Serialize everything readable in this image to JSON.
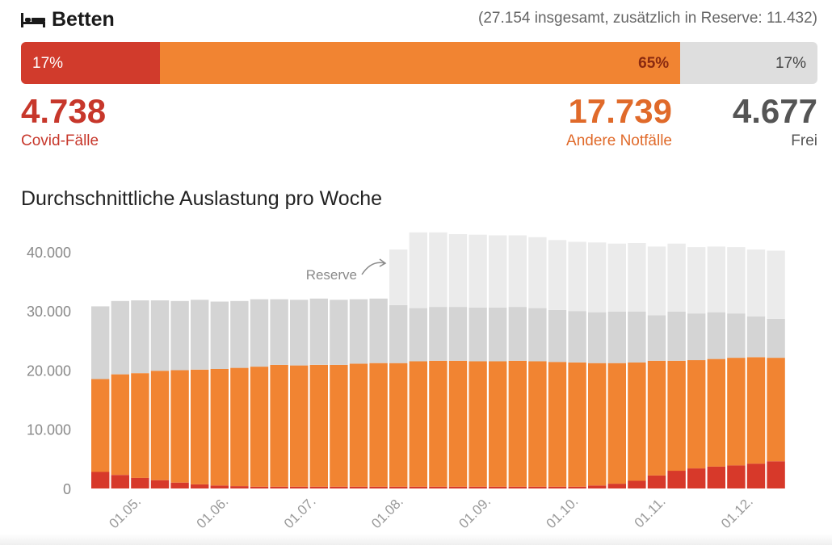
{
  "header": {
    "icon": "bed-icon",
    "title": "Betten",
    "subtitle": "(27.154 insgesamt, zusätzlich in Reserve: 11.432)"
  },
  "occupancy": {
    "segments": [
      {
        "key": "covid",
        "percent_label": "17%",
        "value": 4738,
        "color": "#d13b2c"
      },
      {
        "key": "other",
        "percent_label": "65%",
        "value": 17739,
        "color": "#f18432"
      },
      {
        "key": "free",
        "percent_label": "17%",
        "value": 4677,
        "color": "#dedede"
      }
    ],
    "stats": {
      "covid": {
        "number": "4.738",
        "label": "Covid-Fälle"
      },
      "other": {
        "number": "17.739",
        "label": "Andere Notfälle"
      },
      "free": {
        "number": "4.677",
        "label": "Frei"
      }
    }
  },
  "chart_title": "Durchschnittliche Auslastung pro Woche",
  "chart_data": {
    "type": "bar",
    "stacked": true,
    "title": "Durchschnittliche Auslastung pro Woche",
    "ylim": [
      0,
      43000
    ],
    "yticks": [
      0,
      10000,
      20000,
      30000,
      40000
    ],
    "ytick_labels": [
      "0",
      "10.000",
      "20.000",
      "30.000",
      "40.000"
    ],
    "xtick_labels": [
      "01.05.",
      "01.06.",
      "01.07.",
      "01.08.",
      "01.09.",
      "01.10.",
      "01.11.",
      "01.12."
    ],
    "xtick_bar_index": [
      2,
      6.4,
      10.8,
      15.2,
      19.6,
      24,
      28.4,
      32.8
    ],
    "grid": false,
    "annotation": {
      "text": "Reserve",
      "bar_index": 15
    },
    "series": [
      {
        "key": "covid",
        "color": "#d7392a",
        "values": [
          2800,
          2300,
          1800,
          1400,
          1000,
          700,
          500,
          400,
          300,
          300,
          300,
          300,
          300,
          300,
          300,
          300,
          300,
          300,
          300,
          300,
          300,
          300,
          300,
          300,
          300,
          500,
          800,
          1300,
          2200,
          3000,
          3400,
          3700,
          3900,
          4200,
          4600
        ]
      },
      {
        "key": "other",
        "color": "#f18432",
        "values": [
          15700,
          17000,
          17700,
          18500,
          19000,
          19400,
          19700,
          20000,
          20300,
          20600,
          20500,
          20600,
          20600,
          20800,
          20900,
          20900,
          21200,
          21300,
          21300,
          21200,
          21200,
          21300,
          21200,
          21100,
          21000,
          20700,
          20400,
          20000,
          19400,
          18600,
          18300,
          18200,
          18200,
          18000,
          17500
        ]
      },
      {
        "key": "free",
        "color": "#d4d4d4",
        "values": [
          12300,
          12400,
          12300,
          11900,
          11700,
          11800,
          11400,
          11300,
          11400,
          11100,
          11100,
          11200,
          11000,
          10900,
          10900,
          9800,
          9000,
          9100,
          9100,
          9100,
          9100,
          9100,
          9000,
          8800,
          8700,
          8600,
          8700,
          8600,
          7700,
          8300,
          7900,
          7900,
          7500,
          6900,
          6600
        ]
      },
      {
        "key": "reserve",
        "color": "#ebebeb",
        "values": [
          0,
          0,
          0,
          0,
          0,
          0,
          0,
          0,
          0,
          0,
          0,
          0,
          0,
          0,
          0,
          9400,
          12800,
          12600,
          12300,
          12300,
          12200,
          12100,
          12000,
          11800,
          11700,
          11800,
          11500,
          11600,
          11600,
          11500,
          11200,
          11100,
          11200,
          11300,
          11500
        ]
      }
    ]
  }
}
